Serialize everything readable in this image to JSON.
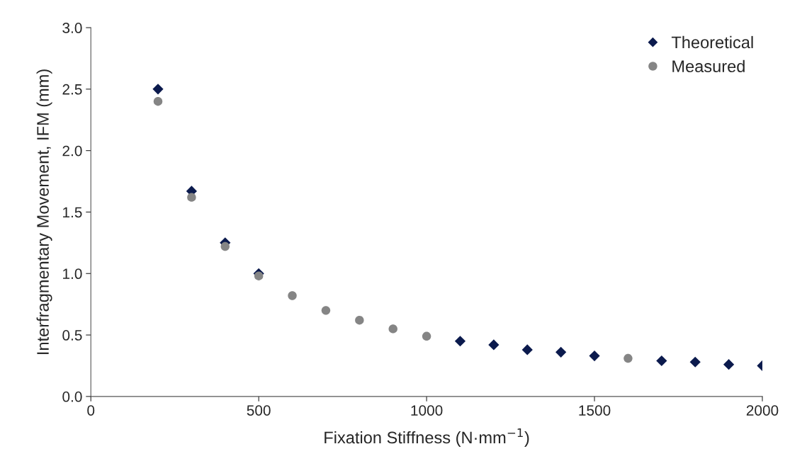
{
  "chart_data": {
    "type": "scatter",
    "xlabel": "Fixation Stiffness (N·mm$^{−1}$)",
    "ylabel": "Interfragmentary Movement, IFM (mm)",
    "x": [
      200,
      300,
      400,
      500,
      600,
      700,
      800,
      900,
      1000,
      1100,
      1200,
      1300,
      1400,
      1500,
      1600,
      1700,
      1800,
      1900,
      2000
    ],
    "series": [
      {
        "name": "Theoretical",
        "color": "#0b1a4d",
        "marker": "diamond",
        "values": [
          2.5,
          1.67,
          1.25,
          1.0,
          null,
          null,
          null,
          null,
          null,
          0.45,
          0.42,
          0.38,
          0.36,
          0.33,
          null,
          0.29,
          0.28,
          0.26,
          0.25
        ]
      },
      {
        "name": "Measured",
        "color": "#858585",
        "marker": "circle",
        "values": [
          2.4,
          1.62,
          1.22,
          0.98,
          0.82,
          0.7,
          0.62,
          0.55,
          0.49,
          null,
          null,
          null,
          null,
          null,
          0.31,
          null,
          null,
          null,
          null
        ]
      }
    ],
    "xlim": [
      0,
      2000
    ],
    "ylim": [
      0,
      3.0
    ],
    "xticks": [
      0,
      500,
      1000,
      1500,
      2000
    ],
    "yticks": [
      {
        "value": 0,
        "label": "0.0"
      },
      {
        "value": 0.5,
        "label": "0.5"
      },
      {
        "value": 1.0,
        "label": "1.0"
      },
      {
        "value": 1.5,
        "label": "1.5"
      },
      {
        "value": 2.0,
        "label": "2.0"
      },
      {
        "value": 2.5,
        "label": "2.5"
      },
      {
        "value": 3.0,
        "label": "3.0"
      }
    ],
    "grid": false,
    "legend": "top right"
  }
}
